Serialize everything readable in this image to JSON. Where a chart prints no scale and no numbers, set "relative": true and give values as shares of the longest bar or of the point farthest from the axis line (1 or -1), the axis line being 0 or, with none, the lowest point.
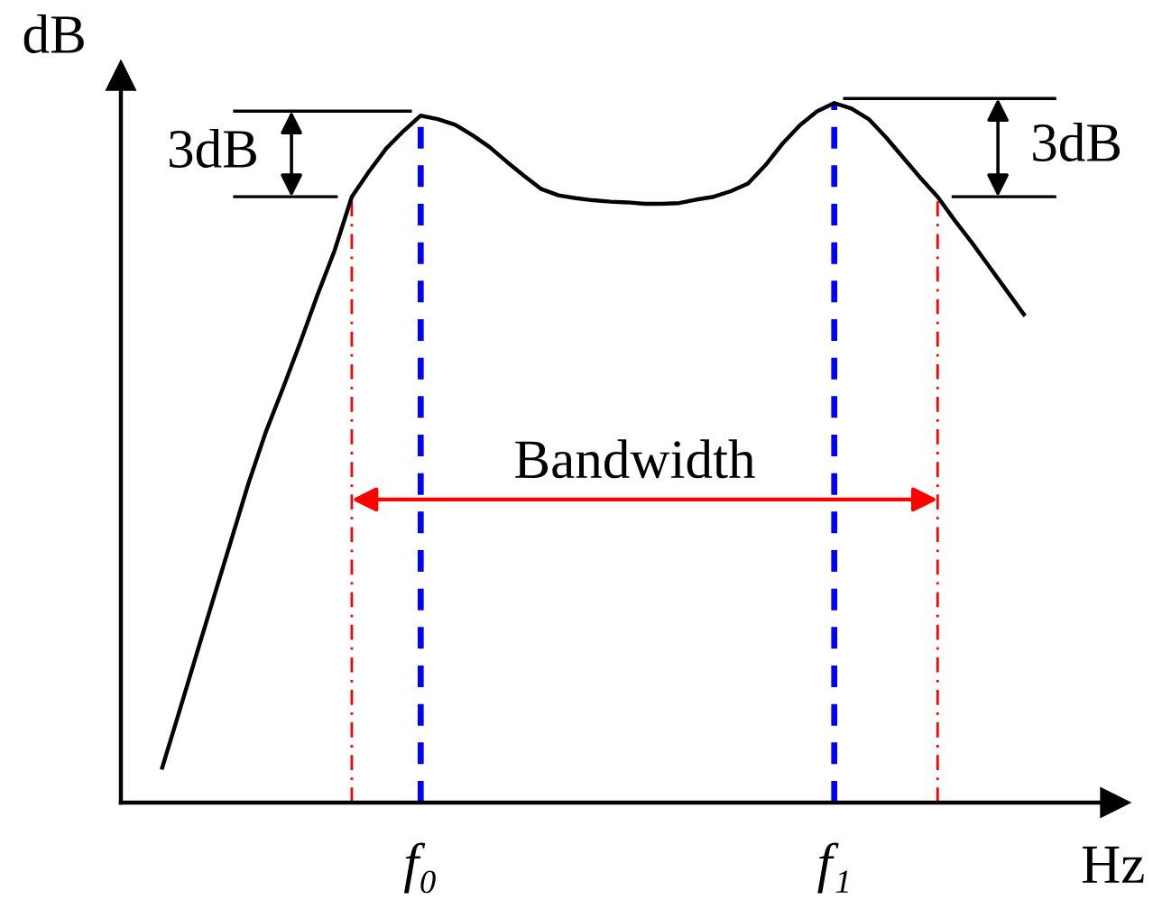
{
  "chart_data": {
    "type": "line",
    "relative": true,
    "xlabel": "Hz",
    "ylabel": "dB",
    "grid": "x",
    "categories": [
      null,
      null,
      null,
      null,
      null,
      null,
      null,
      null,
      null,
      null,
      null,
      null,
      null,
      null,
      null,
      "f₀",
      null,
      null,
      null,
      null,
      null,
      null,
      null,
      null,
      null,
      null,
      null,
      null,
      null,
      null,
      null,
      null,
      null,
      null,
      null,
      null,
      null,
      null,
      null,
      "f₁",
      null,
      null,
      null,
      null,
      null,
      null,
      null,
      null,
      null,
      null,
      null
    ],
    "series": [
      {
        "color": "#000000",
        "values": [
          0.05,
          0.131,
          0.213,
          0.294,
          0.375,
          0.456,
          0.529,
          0.592,
          0.657,
          0.725,
          0.789,
          0.866,
          0.902,
          0.935,
          0.96,
          0.982,
          0.977,
          0.969,
          0.954,
          0.937,
          0.916,
          0.896,
          0.877,
          0.868,
          0.864,
          0.861,
          0.859,
          0.858,
          0.856,
          0.856,
          0.857,
          0.862,
          0.866,
          0.874,
          0.885,
          0.911,
          0.942,
          0.968,
          0.988,
          1.0,
          0.992,
          0.977,
          0.951,
          0.922,
          0.893,
          0.866,
          0.832,
          0.8,
          0.766,
          0.732,
          0.698
        ]
      }
    ],
    "annotations": [
      "3dB",
      "3dB",
      "Bandwidth"
    ]
  }
}
